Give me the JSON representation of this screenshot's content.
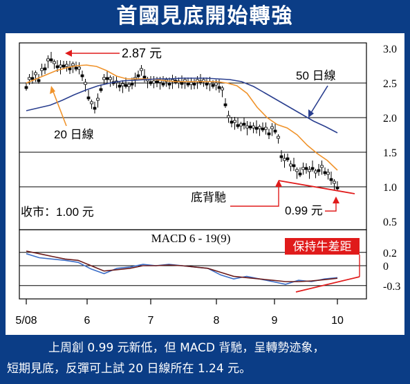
{
  "page": {
    "title": "首國見底開始轉強",
    "caption_line1": "上周創 0.99 元新低，但 MACD 背馳，呈轉勢迹象，",
    "caption_line2": "短期見底，反彈可上試 20 日線所在 1.24 元。"
  },
  "colors": {
    "frame": "#0b3d86",
    "price_candles": "#000000",
    "ma20": "#f0932b",
    "ma50": "#2a3f8f",
    "macd_line": "#3b6ec8",
    "signal_line": "#6b1a1a",
    "annotation": "#e01b1b"
  },
  "chart_data": [
    {
      "type": "candlestick",
      "ylim": [
        0.5,
        3.0
      ],
      "y_ticks": [
        "3.0",
        "2.5",
        "2.0",
        "1.5",
        "1.0",
        "0.5"
      ],
      "x_ticks": [
        "5/08",
        "6",
        "7",
        "8",
        "9",
        "10"
      ],
      "series": [
        {
          "name": "20日線",
          "values": [
            2.5,
            2.56,
            2.62,
            2.68,
            2.72,
            2.75,
            2.76,
            2.74,
            2.68,
            2.6,
            2.56,
            2.56,
            2.56,
            2.55,
            2.53,
            2.52,
            2.52,
            2.52,
            2.52,
            2.52,
            2.5,
            2.46,
            2.35,
            2.15,
            2.0,
            1.9,
            1.85,
            1.75,
            1.6,
            1.48,
            1.38,
            1.24
          ]
        },
        {
          "name": "50日線",
          "values": [
            2.1,
            2.14,
            2.18,
            2.25,
            2.33,
            2.4,
            2.46,
            2.5,
            2.53,
            2.54,
            2.55,
            2.56,
            2.56,
            2.57,
            2.57,
            2.57,
            2.56,
            2.55,
            2.52,
            2.45,
            2.35,
            2.25,
            2.15,
            2.05,
            1.95,
            1.87,
            1.78
          ]
        }
      ],
      "annotations": {
        "high_label": "2.87 元",
        "ma20_label": "20 日線",
        "ma50_label": "50 日線",
        "divergence_label": "底背馳",
        "low_label": "0.99 元",
        "close_label": "收市：1.00 元"
      }
    },
    {
      "type": "line",
      "title": "MACD 6 - 19(9)",
      "ylim": [
        -0.3,
        0.3
      ],
      "y_ticks": [
        "0.2",
        "0",
        "-0.3"
      ],
      "x_ticks": [
        "5/08",
        "6",
        "7",
        "8",
        "9",
        "10"
      ],
      "series": [
        {
          "name": "MACD",
          "values": [
            0.18,
            0.12,
            0.1,
            0.08,
            0.05,
            -0.05,
            -0.12,
            -0.04,
            -0.02,
            0.02,
            0.0,
            0.02,
            0.0,
            -0.02,
            -0.04,
            -0.14,
            -0.2,
            -0.16,
            -0.2,
            -0.24,
            -0.28,
            -0.22,
            -0.24,
            -0.2,
            -0.18
          ]
        },
        {
          "name": "Signal",
          "values": [
            0.22,
            0.18,
            0.14,
            0.1,
            0.08,
            0.0,
            -0.08,
            -0.06,
            -0.04,
            0.0,
            0.0,
            0.01,
            0.0,
            -0.02,
            -0.04,
            -0.1,
            -0.16,
            -0.18,
            -0.2,
            -0.22,
            -0.24,
            -0.24,
            -0.23,
            -0.21,
            -0.19
          ]
        }
      ],
      "annotations": {
        "divergence_label": "保持牛差距"
      }
    }
  ]
}
